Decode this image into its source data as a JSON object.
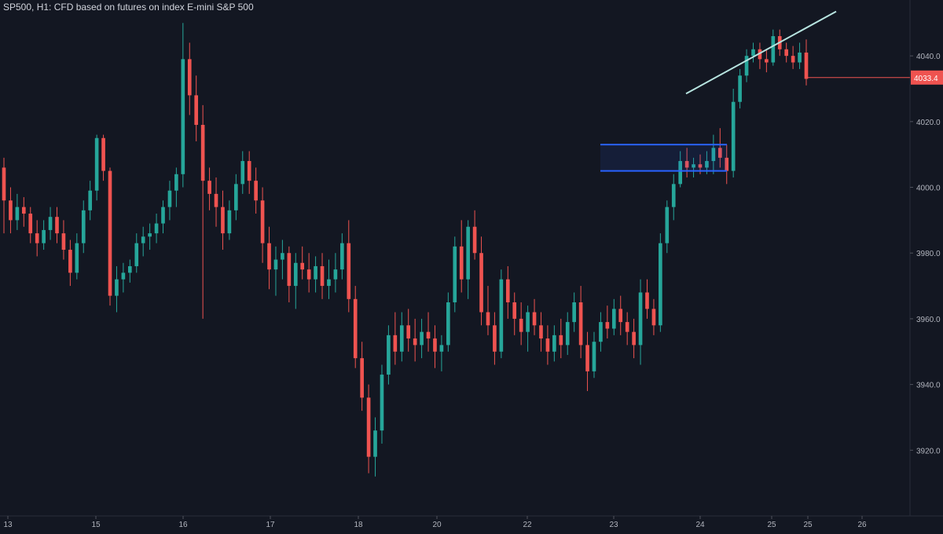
{
  "chart_data": {
    "type": "candlestick",
    "title": "SP500, H1: CFD based on futures on index E-mini S&P 500",
    "ylim": [
      3900,
      4057
    ],
    "yticks": [
      3920.0,
      3940.0,
      3960.0,
      3980.0,
      4000.0,
      4020.0,
      4040.0
    ],
    "xtick_labels": [
      "13",
      "15",
      "16",
      "17",
      "18",
      "20",
      "22",
      "23",
      "24",
      "25",
      "25",
      "26"
    ],
    "last_price": 4033.4,
    "colors": {
      "background": "#131722",
      "up": "#26a69a",
      "down": "#ef5350",
      "axis_text": "#b2b5be",
      "box": "#2962ff",
      "trendline": "#b7e4e0",
      "price_label": "#ef5350"
    },
    "annotations": {
      "box_top": 4013,
      "box_bottom": 4005,
      "trendline": [
        [
          4028.5
        ],
        [
          4053.5
        ]
      ]
    },
    "series": [
      {
        "ohlc": [
          [
            4006,
            4009,
            3986,
            3996
          ],
          [
            3996,
            4000,
            3986,
            3990
          ],
          [
            3990,
            3998,
            3987,
            3994
          ],
          [
            3994,
            3997,
            3988,
            3992
          ],
          [
            3992,
            3994,
            3983,
            3986
          ],
          [
            3986,
            3990,
            3979,
            3983
          ],
          [
            3983,
            3990,
            3981,
            3987
          ],
          [
            3987,
            3994,
            3984,
            3991
          ],
          [
            3991,
            3994,
            3983,
            3986
          ],
          [
            3986,
            3990,
            3978,
            3981
          ],
          [
            3981,
            3984,
            3970,
            3974
          ],
          [
            3974,
            3986,
            3972,
            3983
          ],
          [
            3983,
            3996,
            3980,
            3993
          ],
          [
            3993,
            4002,
            3990,
            3999
          ],
          [
            3999,
            4016,
            3996,
            4015
          ],
          [
            4015,
            4016,
            4002,
            4005
          ],
          [
            4005,
            4006,
            3964,
            3967
          ],
          [
            3967,
            3976,
            3962,
            3972
          ],
          [
            3972,
            3977,
            3968,
            3974
          ],
          [
            3974,
            3978,
            3971,
            3976
          ],
          [
            3976,
            3986,
            3974,
            3983
          ],
          [
            3983,
            3988,
            3979,
            3985
          ],
          [
            3985,
            3989,
            3981,
            3986
          ],
          [
            3986,
            3992,
            3983,
            3989
          ],
          [
            3989,
            3996,
            3986,
            3994
          ],
          [
            3994,
            4002,
            3990,
            3999
          ],
          [
            3999,
            4006,
            3994,
            4004
          ],
          [
            4004,
            4050,
            4000,
            4039
          ],
          [
            4039,
            4044,
            4022,
            4028
          ],
          [
            4028,
            4034,
            4014,
            4019
          ],
          [
            4019,
            4025,
            3960,
            4002
          ],
          [
            4002,
            4006,
            3993,
            3998
          ],
          [
            3998,
            4003,
            3988,
            3994
          ],
          [
            3994,
            3999,
            3981,
            3986
          ],
          [
            3986,
            3996,
            3984,
            3993
          ],
          [
            3993,
            4004,
            3990,
            4001
          ],
          [
            4001,
            4011,
            3998,
            4008
          ],
          [
            4008,
            4011,
            3998,
            4002
          ],
          [
            4002,
            4006,
            3992,
            3996
          ],
          [
            3996,
            4000,
            3977,
            3983
          ],
          [
            3983,
            3988,
            3969,
            3975
          ],
          [
            3975,
            3982,
            3967,
            3978
          ],
          [
            3978,
            3984,
            3972,
            3980
          ],
          [
            3980,
            3982,
            3965,
            3970
          ],
          [
            3970,
            3980,
            3963,
            3977
          ],
          [
            3977,
            3982,
            3972,
            3975
          ],
          [
            3975,
            3980,
            3968,
            3972
          ],
          [
            3972,
            3979,
            3968,
            3976
          ],
          [
            3976,
            3980,
            3966,
            3970
          ],
          [
            3970,
            3978,
            3966,
            3972
          ],
          [
            3972,
            3980,
            3968,
            3975
          ],
          [
            3975,
            3986,
            3972,
            3983
          ],
          [
            3983,
            3990,
            3962,
            3966
          ],
          [
            3966,
            3970,
            3945,
            3948
          ],
          [
            3948,
            3953,
            3932,
            3936
          ],
          [
            3936,
            3940,
            3913,
            3918
          ],
          [
            3918,
            3930,
            3912,
            3926
          ],
          [
            3926,
            3946,
            3922,
            3943
          ],
          [
            3943,
            3958,
            3940,
            3955
          ],
          [
            3955,
            3962,
            3946,
            3950
          ],
          [
            3950,
            3962,
            3947,
            3958
          ],
          [
            3958,
            3963,
            3950,
            3954
          ],
          [
            3954,
            3960,
            3947,
            3952
          ],
          [
            3952,
            3960,
            3948,
            3956
          ],
          [
            3956,
            3962,
            3950,
            3954
          ],
          [
            3954,
            3958,
            3945,
            3950
          ],
          [
            3950,
            3955,
            3944,
            3952
          ],
          [
            3952,
            3968,
            3950,
            3965
          ],
          [
            3965,
            3985,
            3962,
            3982
          ],
          [
            3982,
            3990,
            3968,
            3972
          ],
          [
            3972,
            3990,
            3966,
            3988
          ],
          [
            3988,
            3993,
            3978,
            3980
          ],
          [
            3980,
            3985,
            3958,
            3962
          ],
          [
            3962,
            3970,
            3955,
            3958
          ],
          [
            3958,
            3962,
            3946,
            3950
          ],
          [
            3950,
            3975,
            3948,
            3972
          ],
          [
            3972,
            3976,
            3960,
            3965
          ],
          [
            3965,
            3968,
            3955,
            3960
          ],
          [
            3960,
            3965,
            3952,
            3956
          ],
          [
            3956,
            3964,
            3950,
            3962
          ],
          [
            3962,
            3966,
            3955,
            3958
          ],
          [
            3958,
            3962,
            3950,
            3954
          ],
          [
            3954,
            3958,
            3946,
            3950
          ],
          [
            3950,
            3958,
            3947,
            3955
          ],
          [
            3955,
            3960,
            3948,
            3952
          ],
          [
            3952,
            3962,
            3949,
            3959
          ],
          [
            3959,
            3968,
            3956,
            3965
          ],
          [
            3965,
            3970,
            3948,
            3952
          ],
          [
            3952,
            3956,
            3938,
            3944
          ],
          [
            3944,
            3956,
            3942,
            3953
          ],
          [
            3953,
            3962,
            3950,
            3959
          ],
          [
            3959,
            3964,
            3954,
            3957
          ],
          [
            3957,
            3966,
            3955,
            3963
          ],
          [
            3963,
            3967,
            3955,
            3959
          ],
          [
            3959,
            3962,
            3952,
            3956
          ],
          [
            3956,
            3960,
            3948,
            3952
          ],
          [
            3952,
            3972,
            3946,
            3968
          ],
          [
            3968,
            3972,
            3960,
            3963
          ],
          [
            3963,
            3966,
            3955,
            3958
          ],
          [
            3958,
            3986,
            3956,
            3983
          ],
          [
            3983,
            3996,
            3980,
            3994
          ],
          [
            3994,
            4004,
            3990,
            4001
          ],
          [
            4001,
            4011,
            4000,
            4008
          ],
          [
            4008,
            4012,
            4003,
            4006
          ],
          [
            4006,
            4009,
            4003,
            4007
          ],
          [
            4007,
            4010,
            4004,
            4006
          ],
          [
            4006,
            4011,
            4004,
            4008
          ],
          [
            4008,
            4016,
            4004,
            4012
          ],
          [
            4012,
            4018,
            4006,
            4009
          ],
          [
            4009,
            4013,
            4001,
            4005
          ],
          [
            4005,
            4030,
            4003,
            4026
          ],
          [
            4026,
            4036,
            4024,
            4034
          ],
          [
            4034,
            4042,
            4032,
            4040
          ],
          [
            4040,
            4044,
            4038,
            4042
          ],
          [
            4042,
            4044,
            4036,
            4039
          ],
          [
            4039,
            4042,
            4035,
            4038
          ],
          [
            4038,
            4048,
            4037,
            4046
          ],
          [
            4046,
            4048,
            4040,
            4042
          ],
          [
            4042,
            4044,
            4038,
            4040
          ],
          [
            4040,
            4043,
            4036,
            4038
          ],
          [
            4038,
            4044,
            4036,
            4041
          ],
          [
            4041,
            4045,
            4031,
            4033
          ]
        ]
      }
    ]
  }
}
